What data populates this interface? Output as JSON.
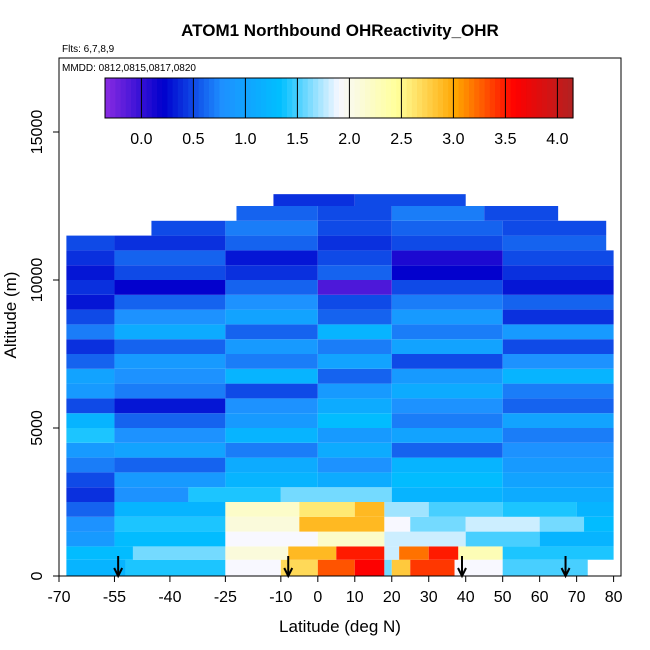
{
  "chart_data": {
    "type": "heatmap",
    "title": "ATOM1 Northbound OHReactivity_OHR",
    "subtitle_flights": "Flts: 6,7,8,9",
    "subtitle_dates": "MMDD: 0812,0815,0817,0820",
    "xlabel": "Latitude (deg N)",
    "ylabel": "Altitude (m)",
    "xlim": [
      -70,
      82
    ],
    "ylim": [
      0,
      17500
    ],
    "x_ticks": [
      -70,
      -55,
      -40,
      -25,
      -10,
      0,
      10,
      20,
      30,
      40,
      50,
      60,
      70,
      80
    ],
    "x_tick_labels": [
      "-70",
      "-55",
      "-40",
      "-25",
      "-10",
      "0",
      "10",
      "20",
      "30",
      "40",
      "50",
      "60",
      "70",
      "80"
    ],
    "y_ticks": [
      0,
      5000,
      10000,
      15000
    ],
    "y_tick_labels": [
      "0",
      "5000",
      "10000",
      "15000"
    ],
    "colorbar": {
      "range": [
        -0.35,
        4.15
      ],
      "ticks": [
        0.0,
        0.5,
        1.0,
        1.5,
        2.0,
        2.5,
        3.0,
        3.5,
        4.0
      ],
      "tick_labels": [
        "0.0",
        "0.5",
        "1.0",
        "1.5",
        "2.0",
        "2.5",
        "3.0",
        "3.5",
        "4.0"
      ],
      "colors": [
        "#8a2be2",
        "#0000cd",
        "#1e90ff",
        "#00bfff",
        "#f8f8ff",
        "#ffff99",
        "#ffa500",
        "#ff0000",
        "#b22222"
      ]
    },
    "profile_arrows_lat": [
      -54,
      -8,
      39,
      67
    ],
    "bands": [
      {
        "alt": [
          0,
          550
        ],
        "x": [
          -68,
          73
        ],
        "segments": [
          [
            -68,
            -52,
            1.2
          ],
          [
            -52,
            -25,
            1.4
          ],
          [
            -25,
            -10,
            1.9
          ],
          [
            -10,
            0,
            2.7
          ],
          [
            0,
            10,
            3.3
          ],
          [
            10,
            18,
            3.6
          ],
          [
            18,
            20,
            1.6
          ],
          [
            20,
            25,
            2.8
          ],
          [
            25,
            37,
            3.4
          ],
          [
            37,
            50,
            1.9
          ],
          [
            50,
            73,
            1.5
          ]
        ]
      },
      {
        "alt": [
          550,
          1000
        ],
        "x": [
          -68,
          80
        ],
        "segments": [
          [
            -68,
            -50,
            1.3
          ],
          [
            -50,
            -25,
            1.6
          ],
          [
            -25,
            -8,
            2.1
          ],
          [
            -8,
            5,
            2.9
          ],
          [
            5,
            18,
            3.5
          ],
          [
            18,
            22,
            1.8
          ],
          [
            22,
            30,
            3.2
          ],
          [
            30,
            38,
            3.5
          ],
          [
            38,
            50,
            2.3
          ],
          [
            50,
            80,
            1.4
          ]
        ]
      },
      {
        "alt": [
          1000,
          1500
        ],
        "x": [
          -68,
          80
        ],
        "segments": [
          [
            -68,
            -55,
            0.9
          ],
          [
            -55,
            -25,
            1.3
          ],
          [
            -25,
            0,
            1.9
          ],
          [
            0,
            18,
            2.2
          ],
          [
            18,
            40,
            1.8
          ],
          [
            40,
            60,
            1.5
          ],
          [
            60,
            80,
            1.2
          ]
        ]
      },
      {
        "alt": [
          1500,
          2000
        ],
        "x": [
          -68,
          80
        ],
        "segments": [
          [
            -68,
            -55,
            0.8
          ],
          [
            -55,
            -25,
            1.4
          ],
          [
            -25,
            -5,
            2.1
          ],
          [
            -5,
            18,
            2.9
          ],
          [
            18,
            25,
            1.9
          ],
          [
            25,
            40,
            1.6
          ],
          [
            40,
            60,
            1.8
          ],
          [
            60,
            72,
            1.6
          ],
          [
            72,
            80,
            1.3
          ]
        ]
      },
      {
        "alt": [
          2000,
          2500
        ],
        "x": [
          -68,
          80
        ],
        "segments": [
          [
            -68,
            -55,
            0.6
          ],
          [
            -55,
            -25,
            1.2
          ],
          [
            -25,
            -5,
            2.2
          ],
          [
            -5,
            10,
            2.6
          ],
          [
            10,
            18,
            2.9
          ],
          [
            18,
            30,
            1.7
          ],
          [
            30,
            50,
            1.5
          ],
          [
            50,
            70,
            1.4
          ],
          [
            70,
            80,
            1.2
          ]
        ]
      },
      {
        "alt": [
          2500,
          3000
        ],
        "x": [
          -68,
          80
        ],
        "segments": [
          [
            -68,
            -55,
            0.4
          ],
          [
            -55,
            -35,
            0.8
          ],
          [
            -35,
            -10,
            1.4
          ],
          [
            -10,
            20,
            1.6
          ],
          [
            20,
            50,
            1.2
          ],
          [
            50,
            80,
            1.1
          ]
        ]
      },
      {
        "alt": [
          3000,
          3500
        ],
        "x": [
          -68,
          80
        ],
        "segments": [
          [
            -68,
            -55,
            0.5
          ],
          [
            -55,
            -25,
            0.9
          ],
          [
            -25,
            0,
            1.2
          ],
          [
            0,
            20,
            1.1
          ],
          [
            20,
            50,
            1.3
          ],
          [
            50,
            80,
            1.0
          ]
        ]
      },
      {
        "alt": [
          3500,
          4000
        ],
        "x": [
          -68,
          80
        ],
        "segments": [
          [
            -68,
            -55,
            0.7
          ],
          [
            -55,
            -25,
            0.6
          ],
          [
            -25,
            0,
            1.1
          ],
          [
            0,
            20,
            0.8
          ],
          [
            20,
            50,
            1.2
          ],
          [
            50,
            80,
            0.9
          ]
        ]
      },
      {
        "alt": [
          4000,
          4500
        ],
        "x": [
          -68,
          80
        ],
        "segments": [
          [
            -68,
            -55,
            0.9
          ],
          [
            -55,
            -25,
            1.0
          ],
          [
            -25,
            0,
            0.7
          ],
          [
            0,
            20,
            1.1
          ],
          [
            20,
            50,
            0.6
          ],
          [
            50,
            80,
            0.8
          ]
        ]
      },
      {
        "alt": [
          4500,
          5000
        ],
        "x": [
          -68,
          80
        ],
        "segments": [
          [
            -68,
            -55,
            1.4
          ],
          [
            -55,
            -25,
            0.8
          ],
          [
            -25,
            0,
            1.2
          ],
          [
            0,
            20,
            0.9
          ],
          [
            20,
            50,
            1.0
          ],
          [
            50,
            80,
            0.7
          ]
        ]
      },
      {
        "alt": [
          5000,
          5500
        ],
        "x": [
          -68,
          80
        ],
        "segments": [
          [
            -68,
            -55,
            1.2
          ],
          [
            -55,
            -25,
            0.6
          ],
          [
            -25,
            0,
            0.9
          ],
          [
            0,
            20,
            1.3
          ],
          [
            20,
            50,
            0.7
          ],
          [
            50,
            80,
            1.0
          ]
        ]
      },
      {
        "alt": [
          5500,
          6000
        ],
        "x": [
          -68,
          80
        ],
        "segments": [
          [
            -68,
            -55,
            0.5
          ],
          [
            -55,
            -25,
            0.3
          ],
          [
            -25,
            0,
            0.8
          ],
          [
            0,
            20,
            1.1
          ],
          [
            20,
            50,
            0.8
          ],
          [
            50,
            80,
            0.6
          ]
        ]
      },
      {
        "alt": [
          6000,
          6500
        ],
        "x": [
          -68,
          80
        ],
        "segments": [
          [
            -68,
            -55,
            0.9
          ],
          [
            -55,
            -25,
            0.7
          ],
          [
            -25,
            0,
            0.5
          ],
          [
            0,
            20,
            0.9
          ],
          [
            20,
            50,
            1.1
          ],
          [
            50,
            80,
            0.7
          ]
        ]
      },
      {
        "alt": [
          6500,
          7000
        ],
        "x": [
          -68,
          80
        ],
        "segments": [
          [
            -68,
            -55,
            1.0
          ],
          [
            -55,
            -25,
            0.8
          ],
          [
            -25,
            0,
            1.2
          ],
          [
            0,
            20,
            0.6
          ],
          [
            20,
            50,
            0.9
          ],
          [
            50,
            80,
            1.2
          ]
        ]
      },
      {
        "alt": [
          7000,
          7500
        ],
        "x": [
          -68,
          80
        ],
        "segments": [
          [
            -68,
            -55,
            0.6
          ],
          [
            -55,
            -25,
            0.9
          ],
          [
            -25,
            0,
            0.7
          ],
          [
            0,
            20,
            1.0
          ],
          [
            20,
            50,
            0.5
          ],
          [
            50,
            80,
            0.8
          ]
        ]
      },
      {
        "alt": [
          7500,
          8000
        ],
        "x": [
          -68,
          80
        ],
        "segments": [
          [
            -68,
            -55,
            0.4
          ],
          [
            -55,
            -25,
            0.6
          ],
          [
            -25,
            0,
            0.9
          ],
          [
            0,
            20,
            0.7
          ],
          [
            20,
            50,
            1.0
          ],
          [
            50,
            80,
            0.5
          ]
        ]
      },
      {
        "alt": [
          8000,
          8500
        ],
        "x": [
          -68,
          80
        ],
        "segments": [
          [
            -68,
            -55,
            0.7
          ],
          [
            -55,
            -25,
            1.1
          ],
          [
            -25,
            0,
            0.6
          ],
          [
            0,
            20,
            1.2
          ],
          [
            20,
            50,
            0.7
          ],
          [
            50,
            80,
            0.9
          ]
        ]
      },
      {
        "alt": [
          8500,
          9000
        ],
        "x": [
          -68,
          80
        ],
        "segments": [
          [
            -68,
            -55,
            0.5
          ],
          [
            -55,
            -25,
            0.8
          ],
          [
            -25,
            0,
            1.0
          ],
          [
            0,
            20,
            0.6
          ],
          [
            20,
            50,
            0.9
          ],
          [
            50,
            80,
            0.4
          ]
        ]
      },
      {
        "alt": [
          9000,
          9500
        ],
        "x": [
          -68,
          80
        ],
        "segments": [
          [
            -68,
            -55,
            0.3
          ],
          [
            -55,
            -25,
            0.6
          ],
          [
            -25,
            0,
            0.8
          ],
          [
            0,
            20,
            0.5
          ],
          [
            20,
            50,
            0.7
          ],
          [
            50,
            80,
            0.6
          ]
        ]
      },
      {
        "alt": [
          9500,
          10000
        ],
        "x": [
          -68,
          80
        ],
        "segments": [
          [
            -68,
            -55,
            0.4
          ],
          [
            -55,
            -25,
            0.2
          ],
          [
            -25,
            0,
            0.6
          ],
          [
            0,
            20,
            -0.1
          ],
          [
            20,
            50,
            0.5
          ],
          [
            50,
            80,
            0.3
          ]
        ]
      },
      {
        "alt": [
          10000,
          10500
        ],
        "x": [
          -68,
          80
        ],
        "segments": [
          [
            -68,
            -55,
            0.3
          ],
          [
            -55,
            -25,
            0.5
          ],
          [
            -25,
            0,
            0.4
          ],
          [
            0,
            20,
            0.6
          ],
          [
            20,
            50,
            0.2
          ],
          [
            50,
            80,
            0.4
          ]
        ]
      },
      {
        "alt": [
          10500,
          11000
        ],
        "x": [
          -68,
          80
        ],
        "segments": [
          [
            -68,
            -55,
            0.4
          ],
          [
            -55,
            -25,
            0.6
          ],
          [
            -25,
            0,
            0.3
          ],
          [
            0,
            20,
            0.5
          ],
          [
            20,
            50,
            0.1
          ],
          [
            50,
            80,
            0.5
          ]
        ]
      },
      {
        "alt": [
          11000,
          11500
        ],
        "x": [
          -68,
          78
        ],
        "segments": [
          [
            -68,
            -55,
            0.5
          ],
          [
            -55,
            -25,
            0.4
          ],
          [
            -25,
            0,
            0.6
          ],
          [
            0,
            20,
            0.4
          ],
          [
            20,
            50,
            0.5
          ],
          [
            50,
            78,
            0.6
          ]
        ]
      },
      {
        "alt": [
          11500,
          12000
        ],
        "x": [
          -45,
          78
        ],
        "segments": [
          [
            -45,
            -25,
            0.5
          ],
          [
            -25,
            0,
            0.7
          ],
          [
            0,
            20,
            0.5
          ],
          [
            20,
            50,
            0.6
          ],
          [
            50,
            78,
            0.5
          ]
        ]
      },
      {
        "alt": [
          12000,
          12500
        ],
        "x": [
          -22,
          65
        ],
        "segments": [
          [
            -22,
            0,
            0.6
          ],
          [
            0,
            20,
            0.5
          ],
          [
            20,
            45,
            0.7
          ],
          [
            45,
            65,
            0.5
          ]
        ]
      },
      {
        "alt": [
          12500,
          12900
        ],
        "x": [
          -12,
          40
        ],
        "segments": [
          [
            -12,
            10,
            0.4
          ],
          [
            10,
            40,
            0.5
          ]
        ]
      }
    ]
  }
}
